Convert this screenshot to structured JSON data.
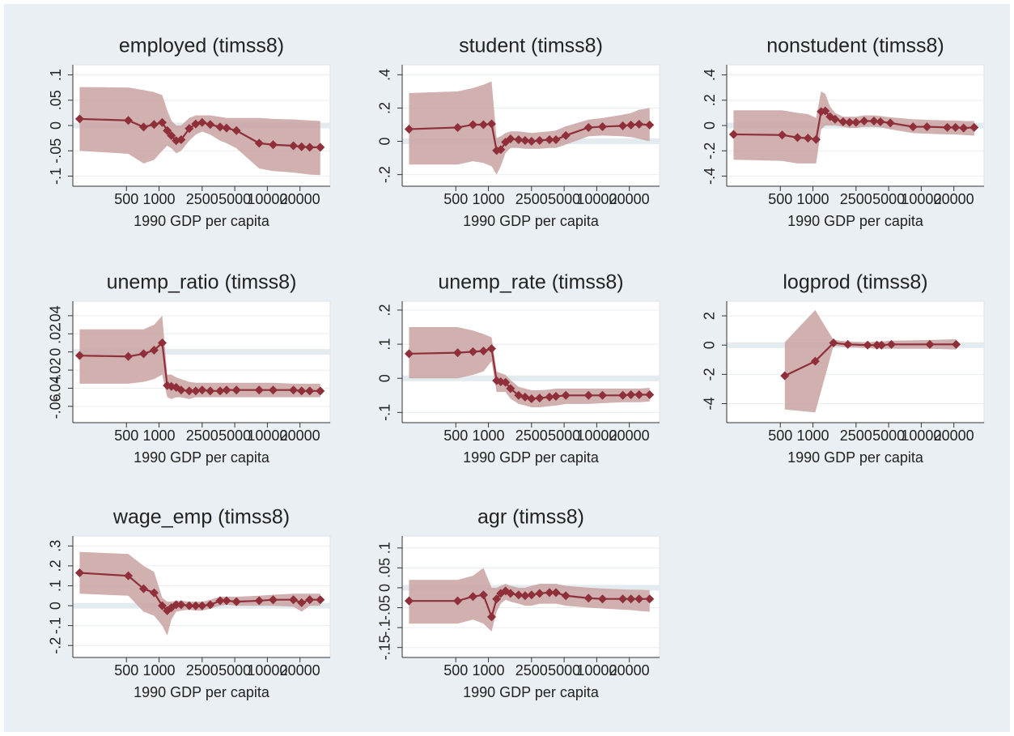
{
  "chart_data": [
    {
      "type": "line",
      "title": "employed (timss8)",
      "x_label": "1990 GDP per capita",
      "log_x": true,
      "grid": true,
      "yline": 0,
      "color": "#8e2f3a",
      "band_color": "#c9a2a2",
      "xlim": [
        160,
        38000
      ],
      "xticks": [
        500,
        1000,
        2500,
        5000,
        10000,
        20000
      ],
      "ylim": [
        -0.12,
        0.12
      ],
      "yticks": [
        {
          "value": -0.1,
          "label": "-.1"
        },
        {
          "value": -0.05,
          "label": "-.05"
        },
        0,
        {
          "value": 0.05,
          "label": ".05"
        },
        {
          "value": 0.1,
          "label": ".1"
        }
      ],
      "x": [
        185,
        520,
        720,
        900,
        1070,
        1190,
        1300,
        1440,
        1600,
        1900,
        2180,
        2500,
        2970,
        3660,
        4200,
        5180,
        8400,
        11300,
        17400,
        20700,
        24600,
        30800
      ],
      "values": [
        0.013,
        0.01,
        -0.003,
        0.002,
        0.006,
        -0.01,
        -0.02,
        -0.03,
        -0.028,
        -0.006,
        0.003,
        0.006,
        0.002,
        -0.003,
        -0.005,
        -0.01,
        -0.035,
        -0.038,
        -0.04,
        -0.042,
        -0.043,
        -0.043
      ],
      "upper": [
        0.076,
        0.075,
        0.07,
        0.066,
        0.06,
        0.03,
        0.01,
        0.0,
        0.0,
        0.015,
        0.02,
        0.02,
        0.02,
        0.017,
        0.015,
        0.015,
        0.015,
        0.013,
        0.012,
        0.011,
        0.01,
        0.009
      ],
      "lower": [
        -0.05,
        -0.056,
        -0.075,
        -0.068,
        -0.05,
        -0.04,
        -0.045,
        -0.055,
        -0.05,
        -0.03,
        -0.018,
        -0.012,
        -0.018,
        -0.03,
        -0.035,
        -0.045,
        -0.085,
        -0.09,
        -0.093,
        -0.095,
        -0.097,
        -0.098
      ]
    },
    {
      "type": "line",
      "title": "student (timss8)",
      "x_label": "1990 GDP per capita",
      "log_x": true,
      "grid": true,
      "yline": 0,
      "color": "#8e2f3a",
      "band_color": "#c9a2a2",
      "xlim": [
        160,
        38000
      ],
      "xticks": [
        500,
        1000,
        2500,
        5000,
        10000,
        20000
      ],
      "ylim": [
        -0.27,
        0.46
      ],
      "yticks": [
        {
          "value": -0.2,
          "label": "-.2"
        },
        0,
        {
          "value": 0.2,
          "label": ".2"
        },
        {
          "value": 0.4,
          "label": ".4"
        }
      ],
      "x": [
        185,
        520,
        720,
        900,
        1070,
        1190,
        1300,
        1440,
        1600,
        1900,
        2180,
        2500,
        2970,
        3660,
        4200,
        5180,
        8400,
        11300,
        17400,
        20700,
        24600,
        30800
      ],
      "values": [
        0.073,
        0.083,
        0.1,
        0.1,
        0.105,
        -0.055,
        -0.05,
        -0.005,
        0.015,
        0.01,
        0.005,
        0.0,
        0.005,
        0.01,
        0.01,
        0.035,
        0.083,
        0.088,
        0.093,
        0.098,
        0.103,
        0.098
      ],
      "upper": [
        0.29,
        0.3,
        0.32,
        0.34,
        0.36,
        0.02,
        0.03,
        0.05,
        0.06,
        0.06,
        0.055,
        0.05,
        0.055,
        0.06,
        0.065,
        0.09,
        0.13,
        0.14,
        0.16,
        0.17,
        0.19,
        0.2
      ],
      "lower": [
        -0.14,
        -0.14,
        -0.12,
        -0.13,
        -0.15,
        -0.2,
        -0.15,
        -0.07,
        -0.04,
        -0.04,
        -0.045,
        -0.045,
        -0.045,
        -0.04,
        -0.04,
        -0.02,
        0.03,
        0.035,
        0.03,
        0.025,
        0.015,
        0.0
      ]
    },
    {
      "type": "line",
      "title": "nonstudent (timss8)",
      "x_label": "1990 GDP per capita",
      "log_x": true,
      "grid": true,
      "yline": 0,
      "color": "#8e2f3a",
      "band_color": "#c9a2a2",
      "xlim": [
        160,
        38000
      ],
      "xticks": [
        500,
        1000,
        2500,
        5000,
        10000,
        20000
      ],
      "ylim": [
        -0.48,
        0.48
      ],
      "yticks": [
        {
          "value": -0.4,
          "label": "-.4"
        },
        {
          "value": -0.2,
          "label": "-.2"
        },
        0,
        {
          "value": 0.2,
          "label": ".2"
        },
        {
          "value": 0.4,
          "label": ".4"
        }
      ],
      "x": [
        185,
        520,
        720,
        900,
        1070,
        1190,
        1300,
        1440,
        1600,
        1900,
        2180,
        2500,
        2970,
        3660,
        4200,
        5180,
        8400,
        11300,
        17400,
        20700,
        24600,
        30800
      ],
      "values": [
        -0.07,
        -0.075,
        -0.095,
        -0.1,
        -0.11,
        0.11,
        0.115,
        0.07,
        0.05,
        0.03,
        0.025,
        0.025,
        0.035,
        0.035,
        0.03,
        0.02,
        -0.01,
        -0.01,
        -0.015,
        -0.015,
        -0.02,
        -0.015
      ],
      "upper": [
        0.12,
        0.12,
        0.1,
        0.09,
        0.06,
        0.27,
        0.25,
        0.15,
        0.1,
        0.07,
        0.07,
        0.07,
        0.08,
        0.08,
        0.075,
        0.065,
        0.05,
        0.045,
        0.04,
        0.04,
        0.035,
        0.035
      ],
      "lower": [
        -0.27,
        -0.28,
        -0.3,
        -0.3,
        -0.3,
        -0.03,
        0.0,
        0.0,
        0.0,
        -0.01,
        -0.02,
        -0.02,
        -0.01,
        -0.01,
        -0.015,
        -0.03,
        -0.06,
        -0.065,
        -0.07,
        -0.07,
        -0.075,
        -0.08
      ]
    },
    {
      "type": "line",
      "title": "unemp_ratio (timss8)",
      "x_label": "1990 GDP per capita",
      "log_x": true,
      "grid": true,
      "yline": 0,
      "color": "#8e2f3a",
      "band_color": "#c9a2a2",
      "xlim": [
        160,
        38000
      ],
      "xticks": [
        500,
        1000,
        2500,
        5000,
        10000,
        20000
      ],
      "ylim": [
        -0.078,
        0.056
      ],
      "yticks": [
        {
          "value": -0.06,
          "label": "-.06"
        },
        {
          "value": -0.04,
          "label": "-.04"
        },
        {
          "value": -0.02,
          "label": "-.02"
        },
        0,
        {
          "value": 0.02,
          "label": ".02"
        },
        {
          "value": 0.04,
          "label": ".04"
        }
      ],
      "x": [
        185,
        520,
        720,
        900,
        1070,
        1190,
        1300,
        1440,
        1600,
        1900,
        2180,
        2500,
        2970,
        3660,
        4200,
        5180,
        8400,
        11300,
        17400,
        20700,
        24600,
        30800
      ],
      "values": [
        -0.004,
        -0.005,
        -0.002,
        0.002,
        0.01,
        -0.037,
        -0.038,
        -0.039,
        -0.042,
        -0.043,
        -0.043,
        -0.042,
        -0.043,
        -0.043,
        -0.042,
        -0.042,
        -0.042,
        -0.042,
        -0.042,
        -0.043,
        -0.043,
        -0.043
      ],
      "upper": [
        0.025,
        0.025,
        0.025,
        0.03,
        0.04,
        -0.025,
        -0.025,
        -0.028,
        -0.03,
        -0.033,
        -0.034,
        -0.034,
        -0.034,
        -0.034,
        -0.034,
        -0.034,
        -0.034,
        -0.034,
        -0.035,
        -0.035,
        -0.035,
        -0.035
      ],
      "lower": [
        -0.035,
        -0.035,
        -0.033,
        -0.03,
        -0.025,
        -0.05,
        -0.052,
        -0.05,
        -0.05,
        -0.052,
        -0.05,
        -0.05,
        -0.05,
        -0.05,
        -0.05,
        -0.05,
        -0.05,
        -0.05,
        -0.05,
        -0.05,
        -0.05,
        -0.05
      ]
    },
    {
      "type": "line",
      "title": "unemp_rate (timss8)",
      "x_label": "1990 GDP per capita",
      "log_x": true,
      "grid": true,
      "yline": 0,
      "color": "#8e2f3a",
      "band_color": "#c9a2a2",
      "xlim": [
        160,
        38000
      ],
      "xticks": [
        500,
        1000,
        2500,
        5000,
        10000,
        20000
      ],
      "ylim": [
        -0.13,
        0.226
      ],
      "yticks": [
        {
          "value": -0.1,
          "label": "-.1"
        },
        0,
        {
          "value": 0.1,
          "label": ".1"
        },
        {
          "value": 0.2,
          "label": ".2"
        }
      ],
      "x": [
        185,
        520,
        720,
        900,
        1070,
        1190,
        1300,
        1440,
        1600,
        1900,
        2180,
        2500,
        2970,
        3660,
        4200,
        5180,
        8400,
        11300,
        17400,
        20700,
        24600,
        30800
      ],
      "values": [
        0.072,
        0.075,
        0.078,
        0.08,
        0.087,
        -0.007,
        -0.01,
        -0.012,
        -0.03,
        -0.05,
        -0.055,
        -0.06,
        -0.058,
        -0.055,
        -0.053,
        -0.05,
        -0.05,
        -0.05,
        -0.05,
        -0.048,
        -0.048,
        -0.048
      ],
      "upper": [
        0.15,
        0.15,
        0.14,
        0.13,
        0.12,
        0.02,
        0.015,
        0.01,
        -0.005,
        -0.025,
        -0.03,
        -0.035,
        -0.035,
        -0.033,
        -0.03,
        -0.03,
        -0.03,
        -0.03,
        -0.03,
        -0.03,
        -0.03,
        -0.028
      ],
      "lower": [
        0.0,
        0.0,
        0.01,
        0.02,
        0.05,
        -0.04,
        -0.04,
        -0.04,
        -0.06,
        -0.075,
        -0.08,
        -0.085,
        -0.085,
        -0.082,
        -0.08,
        -0.075,
        -0.075,
        -0.073,
        -0.07,
        -0.07,
        -0.07,
        -0.068
      ]
    },
    {
      "type": "line",
      "title": "logprod (timss8)",
      "x_label": "1990 GDP per capita",
      "log_x": true,
      "grid": true,
      "yline": 0,
      "color": "#8e2f3a",
      "band_color": "#c9a2a2",
      "xlim": [
        160,
        38000
      ],
      "xticks": [
        500,
        1000,
        2500,
        5000,
        10000,
        20000
      ],
      "ylim": [
        -5.3,
        3.0
      ],
      "yticks": [
        -4,
        -2,
        0,
        2
      ],
      "x": [
        550,
        1050,
        1550,
        2100,
        3200,
        3900,
        4300,
        5300,
        12000,
        21000
      ],
      "values": [
        -2.1,
        -1.1,
        0.15,
        0.05,
        0.0,
        0.0,
        0.0,
        0.05,
        0.05,
        0.05
      ],
      "upper": [
        0.2,
        2.4,
        0.35,
        0.25,
        0.2,
        0.25,
        0.25,
        0.3,
        0.35,
        0.4
      ],
      "lower": [
        -4.4,
        -4.6,
        -0.05,
        -0.15,
        -0.2,
        -0.25,
        -0.25,
        -0.25,
        -0.25,
        -0.3
      ]
    },
    {
      "type": "line",
      "title": "wage_emp (timss8)",
      "x_label": "1990 GDP per capita",
      "log_x": true,
      "grid": true,
      "yline": 0,
      "color": "#8e2f3a",
      "band_color": "#c9a2a2",
      "xlim": [
        160,
        38000
      ],
      "xticks": [
        500,
        1000,
        2500,
        5000,
        10000,
        20000
      ],
      "ylim": [
        -0.26,
        0.35
      ],
      "yticks": [
        {
          "value": -0.2,
          "label": "-.2"
        },
        {
          "value": -0.1,
          "label": "-.1"
        },
        0,
        {
          "value": 0.1,
          "label": ".1"
        },
        {
          "value": 0.2,
          "label": ".2"
        },
        {
          "value": 0.3,
          "label": ".3"
        }
      ],
      "x": [
        185,
        520,
        720,
        900,
        1070,
        1190,
        1300,
        1440,
        1600,
        1900,
        2180,
        2500,
        2970,
        3660,
        4200,
        5180,
        8400,
        11300,
        17400,
        20700,
        24600,
        30800
      ],
      "values": [
        0.165,
        0.15,
        0.085,
        0.065,
        0.0,
        -0.025,
        -0.01,
        0.005,
        0.005,
        0.0,
        0.0,
        0.0,
        0.005,
        0.025,
        0.025,
        0.02,
        0.025,
        0.03,
        0.03,
        0.015,
        0.03,
        0.03
      ],
      "upper": [
        0.27,
        0.26,
        0.2,
        0.17,
        0.04,
        0.02,
        0.02,
        0.025,
        0.025,
        0.02,
        0.02,
        0.02,
        0.03,
        0.045,
        0.045,
        0.045,
        0.05,
        0.055,
        0.06,
        0.06,
        0.06,
        0.06
      ],
      "lower": [
        0.06,
        0.05,
        -0.03,
        -0.05,
        -0.1,
        -0.15,
        -0.07,
        -0.03,
        -0.025,
        -0.02,
        -0.025,
        -0.025,
        -0.015,
        0.0,
        0.005,
        0.0,
        0.0,
        0.0,
        -0.005,
        -0.03,
        0.0,
        0.0
      ]
    },
    {
      "type": "line",
      "title": "agr (timss8)",
      "x_label": "1990 GDP per capita",
      "log_x": true,
      "grid": true,
      "yline": 0,
      "color": "#8e2f3a",
      "band_color": "#c9a2a2",
      "xlim": [
        160,
        38000
      ],
      "xticks": [
        500,
        1000,
        2500,
        5000,
        10000,
        20000
      ],
      "ylim": [
        -0.175,
        0.13
      ],
      "yticks": [
        {
          "value": -0.15,
          "label": "-.15"
        },
        {
          "value": -0.1,
          "label": "-.1"
        },
        {
          "value": -0.05,
          "label": "-.05"
        },
        0,
        {
          "value": 0.05,
          "label": ".05"
        },
        {
          "value": 0.1,
          "label": ".1"
        }
      ],
      "x": [
        185,
        520,
        720,
        900,
        1070,
        1190,
        1300,
        1440,
        1600,
        1900,
        2180,
        2500,
        2970,
        3660,
        4200,
        5180,
        8400,
        11300,
        17400,
        20700,
        24600,
        30800
      ],
      "values": [
        -0.033,
        -0.033,
        -0.022,
        -0.018,
        -0.073,
        -0.028,
        -0.014,
        -0.008,
        -0.014,
        -0.018,
        -0.02,
        -0.018,
        -0.014,
        -0.012,
        -0.012,
        -0.02,
        -0.026,
        -0.028,
        -0.028,
        -0.028,
        -0.028,
        -0.028
      ],
      "upper": [
        0.02,
        0.02,
        0.03,
        0.05,
        0.0,
        0.0,
        0.005,
        0.01,
        0.005,
        0.0,
        0.0,
        0.005,
        0.01,
        0.01,
        0.01,
        0.005,
        0.0,
        -0.002,
        -0.004,
        -0.005,
        -0.005,
        -0.006
      ],
      "lower": [
        -0.09,
        -0.09,
        -0.08,
        -0.09,
        -0.11,
        -0.06,
        -0.04,
        -0.03,
        -0.035,
        -0.04,
        -0.045,
        -0.045,
        -0.04,
        -0.04,
        -0.04,
        -0.045,
        -0.05,
        -0.052,
        -0.055,
        -0.056,
        -0.058,
        -0.06
      ]
    }
  ]
}
